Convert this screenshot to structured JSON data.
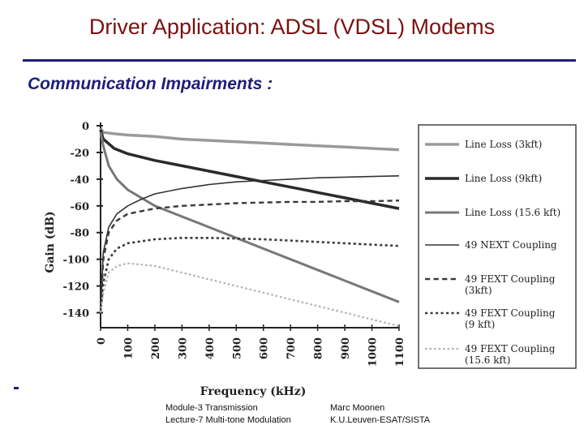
{
  "slide": {
    "title": "Driver Application: ADSL (VDSL) Modems",
    "subtitle": "Communication Impairments :"
  },
  "footer": {
    "left_line1": "Module-3  Transmission",
    "left_line2": "Lecture-7  Multi-tone Modulation",
    "right_line1": "Marc Moonen",
    "right_line2": "K.U.Leuven-ESAT/SISTA"
  },
  "colors": {
    "title": "#7a1212",
    "accent": "#1e1e7a"
  },
  "chart_data": {
    "type": "line",
    "title": "",
    "xlabel": "Frequency (kHz)",
    "ylabel": "Gain (dB)",
    "xlim": [
      0,
      1100
    ],
    "ylim": [
      -150,
      0
    ],
    "x_ticks": [
      0,
      100,
      200,
      300,
      400,
      500,
      600,
      700,
      800,
      900,
      1000,
      1100
    ],
    "y_ticks": [
      0,
      -20,
      -40,
      -60,
      -80,
      -100,
      -120,
      -140
    ],
    "legend_position": "right",
    "series": [
      {
        "name": "Line Loss (3kft)",
        "style": "solid",
        "color": "#9a9a9a",
        "width": 3.5,
        "x": [
          0,
          10,
          50,
          100,
          200,
          300,
          400,
          500,
          600,
          700,
          800,
          900,
          1000,
          1100
        ],
        "y": [
          -2,
          -5,
          -6,
          -7,
          -8,
          -10,
          -11,
          -12,
          -13,
          -14,
          -15,
          -16,
          -17,
          -18
        ]
      },
      {
        "name": "Line Loss (9kft)",
        "style": "solid",
        "color": "#2a2a2a",
        "width": 3.5,
        "x": [
          0,
          10,
          50,
          100,
          200,
          300,
          400,
          500,
          600,
          700,
          800,
          900,
          1000,
          1100
        ],
        "y": [
          -3,
          -10,
          -17,
          -21,
          -26,
          -30,
          -34,
          -38,
          -42,
          -46,
          -50,
          -54,
          -58,
          -62
        ]
      },
      {
        "name": "Line Loss (15.6 kft)",
        "style": "solid",
        "color": "#777777",
        "width": 3,
        "x": [
          0,
          10,
          30,
          60,
          100,
          200,
          300,
          400,
          500,
          600,
          700,
          800,
          900,
          1000,
          1100
        ],
        "y": [
          -5,
          -15,
          -30,
          -40,
          -48,
          -60,
          -68,
          -76,
          -84,
          -92,
          -100,
          -108,
          -116,
          -124,
          -132
        ]
      },
      {
        "name": "49 NEXT Coupling",
        "style": "solid",
        "color": "#333333",
        "width": 1.6,
        "x": [
          0,
          10,
          30,
          60,
          100,
          150,
          200,
          300,
          400,
          500,
          600,
          700,
          800,
          900,
          1000,
          1100
        ],
        "y": [
          -140,
          -95,
          -76,
          -66,
          -60,
          -55,
          -51,
          -47,
          -44,
          -42,
          -41,
          -40,
          -39,
          -38.5,
          -38,
          -37.5
        ]
      },
      {
        "name": "49 FEXT Coupling (3kft)",
        "style": "dash",
        "color": "#3a3a3a",
        "width": 2.4,
        "x": [
          0,
          10,
          30,
          60,
          100,
          200,
          300,
          400,
          500,
          600,
          700,
          800,
          900,
          1000,
          1100
        ],
        "y": [
          -140,
          -100,
          -80,
          -71,
          -66,
          -62,
          -60,
          -59,
          -58,
          -57.5,
          -57,
          -57,
          -56.5,
          -56.5,
          -56
        ]
      },
      {
        "name": "49 FEXT Coupling (9 kft)",
        "style": "dot",
        "color": "#3a3a3a",
        "width": 2.6,
        "x": [
          0,
          10,
          30,
          60,
          100,
          200,
          300,
          400,
          500,
          600,
          700,
          800,
          900,
          1000,
          1100
        ],
        "y": [
          -140,
          -118,
          -100,
          -92,
          -88,
          -85,
          -84,
          -84,
          -84.5,
          -85,
          -86,
          -87,
          -88,
          -89,
          -90
        ]
      },
      {
        "name": "49 FEXT Coupling (15.6 kft)",
        "style": "dot",
        "color": "#b4b4b4",
        "width": 2.2,
        "x": [
          0,
          10,
          30,
          60,
          100,
          200,
          300,
          400,
          500,
          600,
          700,
          800,
          900,
          1000,
          1100
        ],
        "y": [
          -140,
          -125,
          -110,
          -105,
          -103,
          -105,
          -110,
          -115,
          -120,
          -125,
          -130,
          -135,
          -140,
          -145,
          -150
        ]
      }
    ]
  }
}
